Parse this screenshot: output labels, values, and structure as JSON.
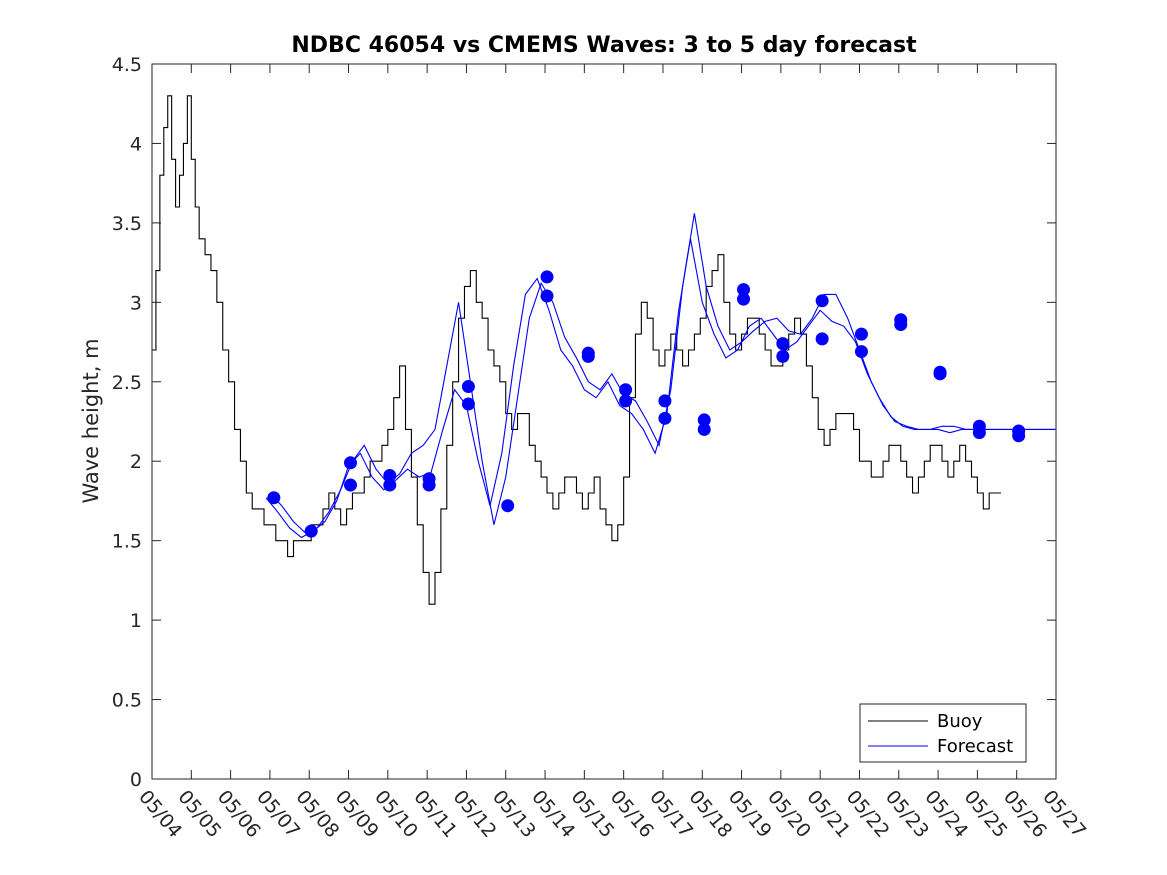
{
  "chart_data": {
    "type": "line",
    "title": "NDBC 46054 vs CMEMS Waves: 3 to 5 day forecast",
    "xlabel": "",
    "ylabel": "Wave height, m",
    "ylim": [
      0,
      4.5
    ],
    "xlim": [
      "05/04",
      "05/27"
    ],
    "x_ticks": [
      "05/04",
      "05/05",
      "05/06",
      "05/07",
      "05/08",
      "05/09",
      "05/10",
      "05/11",
      "05/12",
      "05/13",
      "05/14",
      "05/15",
      "05/16",
      "05/17",
      "05/18",
      "05/19",
      "05/20",
      "05/21",
      "05/22",
      "05/23",
      "05/24",
      "05/25",
      "05/26",
      "05/27"
    ],
    "y_ticks": [
      "0",
      "0.5",
      "1",
      "1.5",
      "2",
      "2.5",
      "3",
      "3.5",
      "4",
      "4.5"
    ],
    "legend_position": "bottom-right",
    "grid": false,
    "colors": {
      "buoy": "#000000",
      "forecast": "#0000ff"
    },
    "series": [
      {
        "name": "Buoy",
        "x_days_since_05_04": [
          0.0,
          0.1,
          0.2,
          0.3,
          0.4,
          0.5,
          0.6,
          0.7,
          0.8,
          0.9,
          1.0,
          1.1,
          1.2,
          1.35,
          1.5,
          1.65,
          1.8,
          1.95,
          2.1,
          2.25,
          2.4,
          2.55,
          2.7,
          2.85,
          3.0,
          3.15,
          3.3,
          3.45,
          3.6,
          3.75,
          3.9,
          4.05,
          4.2,
          4.35,
          4.5,
          4.65,
          4.8,
          4.95,
          5.1,
          5.25,
          5.4,
          5.55,
          5.7,
          5.85,
          6.0,
          6.15,
          6.3,
          6.45,
          6.6,
          6.75,
          6.9,
          7.05,
          7.2,
          7.35,
          7.5,
          7.65,
          7.8,
          7.95,
          8.1,
          8.25,
          8.4,
          8.55,
          8.7,
          8.85,
          9.0,
          9.15,
          9.3,
          9.45,
          9.6,
          9.75,
          9.9,
          10.05,
          10.2,
          10.35,
          10.5,
          10.65,
          10.8,
          10.95,
          11.1,
          11.25,
          11.4,
          11.55,
          11.7,
          11.85,
          12.0,
          12.15,
          12.3,
          12.45,
          12.6,
          12.75,
          12.9,
          13.05,
          13.2,
          13.35,
          13.5,
          13.65,
          13.8,
          13.95,
          14.1,
          14.25,
          14.4,
          14.55,
          14.7,
          14.85,
          15.0,
          15.15,
          15.3,
          15.45,
          15.6,
          15.75,
          15.9,
          16.05,
          16.2,
          16.35,
          16.5,
          16.65,
          16.8,
          16.95,
          17.1,
          17.25,
          17.4,
          17.55,
          17.7,
          17.85,
          18.0,
          18.15,
          18.3,
          18.45,
          18.6,
          18.75,
          18.9,
          19.05,
          19.2,
          19.35,
          19.5,
          19.65,
          19.8,
          19.95,
          20.1,
          20.25,
          20.4,
          20.55,
          20.7,
          20.85,
          21.0,
          21.15,
          21.3,
          21.45,
          21.6,
          21.75,
          21.9,
          22.05,
          22.2
        ],
        "values": [
          2.7,
          3.2,
          3.8,
          4.1,
          4.3,
          3.9,
          3.6,
          3.8,
          4.0,
          4.3,
          3.9,
          3.6,
          3.4,
          3.3,
          3.2,
          3.0,
          2.7,
          2.5,
          2.2,
          2.0,
          1.8,
          1.7,
          1.7,
          1.6,
          1.6,
          1.5,
          1.5,
          1.4,
          1.5,
          1.5,
          1.5,
          1.6,
          1.6,
          1.7,
          1.8,
          1.7,
          1.6,
          1.7,
          1.8,
          1.8,
          1.9,
          2.0,
          2.0,
          2.1,
          2.2,
          2.4,
          2.6,
          2.2,
          1.9,
          1.6,
          1.3,
          1.1,
          1.3,
          1.7,
          2.1,
          2.5,
          2.9,
          3.1,
          3.2,
          3.0,
          2.9,
          2.7,
          2.6,
          2.5,
          2.3,
          2.2,
          2.3,
          2.3,
          2.1,
          2.0,
          1.9,
          1.8,
          1.7,
          1.8,
          1.9,
          1.9,
          1.8,
          1.7,
          1.8,
          1.9,
          1.7,
          1.6,
          1.5,
          1.6,
          1.9,
          2.4,
          2.8,
          3.0,
          2.9,
          2.7,
          2.6,
          2.7,
          2.8,
          2.7,
          2.6,
          2.7,
          2.8,
          2.9,
          3.1,
          3.2,
          3.3,
          3.0,
          2.8,
          2.7,
          2.8,
          2.9,
          2.9,
          2.8,
          2.7,
          2.6,
          2.6,
          2.7,
          2.8,
          2.9,
          2.8,
          2.6,
          2.4,
          2.2,
          2.1,
          2.2,
          2.3,
          2.3,
          2.3,
          2.2,
          2.0,
          2.0,
          1.9,
          1.9,
          2.0,
          2.1,
          2.1,
          2.0,
          1.9,
          1.8,
          1.9,
          2.0,
          2.1,
          2.1,
          2.0,
          1.9,
          2.0,
          2.1,
          2.0,
          1.9,
          1.8,
          1.7,
          1.8,
          1.8
        ]
      },
      {
        "name": "Forecast",
        "runs": [
          {
            "x_days_since_05_04": [
              2.9,
              3.2,
              3.5,
              3.8,
              4.1,
              4.4,
              4.7,
              5.0,
              5.3,
              5.6,
              5.9,
              6.2,
              6.5,
              6.8,
              7.1,
              7.4,
              7.7,
              8.0,
              8.3,
              8.6,
              8.9,
              9.2,
              9.5,
              9.8,
              10.1,
              10.4,
              10.7,
              11.0,
              11.3,
              11.6,
              11.9,
              12.2,
              12.5,
              12.8,
              13.1,
              13.4,
              13.7,
              14.0,
              14.3,
              14.6,
              14.9,
              15.2,
              15.5,
              15.8,
              16.1,
              16.4,
              16.7,
              17.0,
              17.3,
              17.6,
              17.9,
              18.2,
              18.5,
              18.8,
              19.1,
              19.4,
              19.7,
              20.0,
              20.3,
              20.6,
              20.9,
              21.2,
              21.5,
              21.8,
              22.1,
              22.4,
              22.7,
              23.0
            ],
            "values": [
              1.77,
              1.68,
              1.58,
              1.52,
              1.56,
              1.62,
              1.75,
              1.97,
              2.05,
              1.9,
              1.82,
              1.88,
              1.95,
              1.9,
              1.93,
              2.2,
              2.45,
              2.35,
              2.0,
              1.72,
              2.05,
              2.6,
              3.05,
              3.15,
              2.95,
              2.7,
              2.6,
              2.45,
              2.4,
              2.5,
              2.35,
              2.3,
              2.2,
              2.05,
              2.3,
              2.95,
              3.4,
              3.0,
              2.8,
              2.65,
              2.7,
              2.85,
              2.9,
              2.8,
              2.7,
              2.75,
              2.85,
              2.95,
              2.88,
              2.85,
              2.75,
              2.55,
              2.4,
              2.28,
              2.22,
              2.2,
              2.2,
              2.2,
              2.18,
              2.2,
              2.2,
              2.2,
              2.2,
              2.2,
              2.2,
              2.2,
              2.2,
              2.2
            ]
          },
          {
            "x_days_since_05_04": [
              3.0,
              3.3,
              3.6,
              3.9,
              4.2,
              4.5,
              4.8,
              5.1,
              5.4,
              5.7,
              6.0,
              6.3,
              6.6,
              6.9,
              7.2,
              7.5,
              7.8,
              8.1,
              8.4,
              8.7,
              9.0,
              9.3,
              9.6,
              9.9,
              10.2,
              10.5,
              10.8,
              11.1,
              11.4,
              11.7,
              12.0,
              12.3,
              12.6,
              12.9,
              13.2,
              13.5,
              13.8,
              14.1,
              14.4,
              14.7,
              15.0,
              15.3,
              15.6,
              15.9,
              16.2,
              16.5,
              16.8,
              17.1,
              17.4,
              17.7,
              18.0,
              18.3,
              18.6,
              18.9,
              19.2,
              19.5,
              19.8,
              20.1,
              20.4,
              20.7,
              21.0,
              21.3,
              21.6,
              21.9,
              22.2,
              22.5,
              22.8,
              23.0
            ],
            "values": [
              1.8,
              1.72,
              1.62,
              1.55,
              1.58,
              1.68,
              1.82,
              2.0,
              2.1,
              1.95,
              1.86,
              1.92,
              2.05,
              2.1,
              2.2,
              2.6,
              3.0,
              2.5,
              2.0,
              1.6,
              1.9,
              2.4,
              2.9,
              3.12,
              3.0,
              2.78,
              2.65,
              2.5,
              2.45,
              2.55,
              2.42,
              2.38,
              2.25,
              2.1,
              2.45,
              3.1,
              3.56,
              3.1,
              2.85,
              2.7,
              2.75,
              2.82,
              2.88,
              2.9,
              2.82,
              2.8,
              2.9,
              3.05,
              3.05,
              2.9,
              2.7,
              2.5,
              2.35,
              2.25,
              2.22,
              2.2,
              2.2,
              2.22,
              2.22,
              2.2,
              2.2,
              2.2,
              2.2,
              2.2,
              2.2,
              2.2,
              2.2,
              2.2
            ]
          }
        ],
        "markers_x_days_since_05_04": [
          3.1,
          4.05,
          5.05,
          5.05,
          6.05,
          6.05,
          7.05,
          7.05,
          8.05,
          8.05,
          9.05,
          10.05,
          10.05,
          11.1,
          11.1,
          12.05,
          12.05,
          13.05,
          13.05,
          14.05,
          14.05,
          15.05,
          15.05,
          16.05,
          16.05,
          17.05,
          17.05,
          18.05,
          18.05,
          19.05,
          19.05,
          20.05,
          20.05,
          21.05,
          21.05,
          22.05,
          22.05
        ],
        "markers_values": [
          1.77,
          1.56,
          1.85,
          1.99,
          1.85,
          1.91,
          1.85,
          1.89,
          2.36,
          2.47,
          1.72,
          3.04,
          3.16,
          2.66,
          2.68,
          2.38,
          2.45,
          2.27,
          2.38,
          2.2,
          2.26,
          3.02,
          3.08,
          2.66,
          2.74,
          2.77,
          3.01,
          2.69,
          2.8,
          2.86,
          2.89,
          2.55,
          2.56,
          2.18,
          2.22,
          2.16,
          2.19
        ]
      }
    ]
  },
  "legend": {
    "buoy_label": "Buoy",
    "forecast_label": "Forecast"
  }
}
